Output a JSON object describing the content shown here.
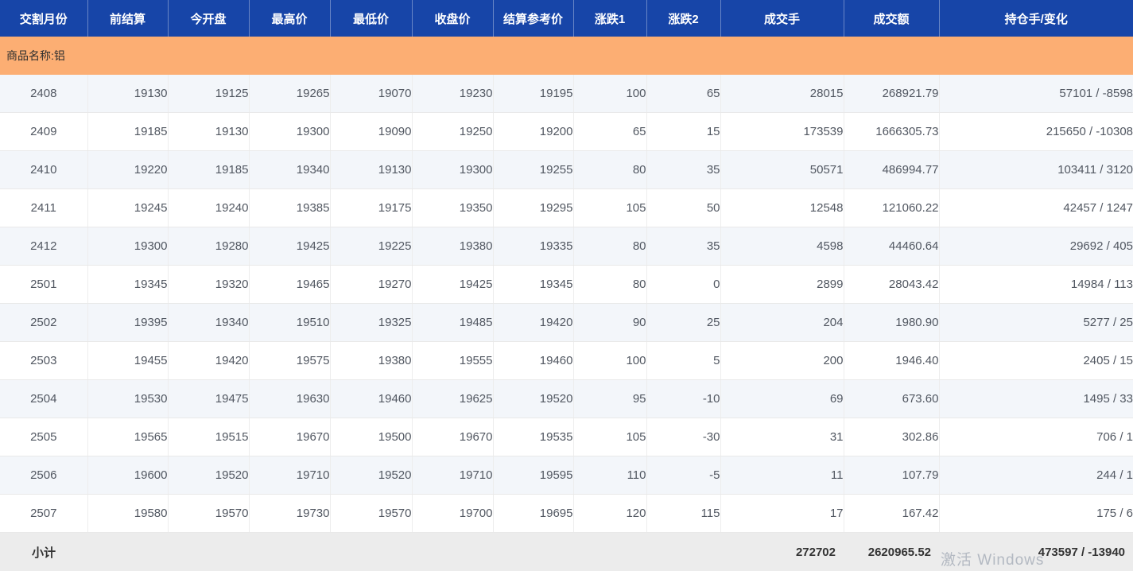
{
  "table": {
    "columns": [
      {
        "key": "month",
        "label": "交割月份"
      },
      {
        "key": "prev_settle",
        "label": "前结算"
      },
      {
        "key": "open",
        "label": "今开盘"
      },
      {
        "key": "high",
        "label": "最高价"
      },
      {
        "key": "low",
        "label": "最低价"
      },
      {
        "key": "close",
        "label": "收盘价"
      },
      {
        "key": "settle_ref",
        "label": "结算参考价"
      },
      {
        "key": "change1",
        "label": "涨跌1"
      },
      {
        "key": "change2",
        "label": "涨跌2"
      },
      {
        "key": "volume",
        "label": "成交手"
      },
      {
        "key": "turnover",
        "label": "成交额"
      },
      {
        "key": "open_interest",
        "label": "持仓手/变化"
      }
    ],
    "group_label": "商品名称:铝",
    "rows": [
      [
        "2408",
        "19130",
        "19125",
        "19265",
        "19070",
        "19230",
        "19195",
        "100",
        "65",
        "28015",
        "268921.79",
        "57101 / -8598"
      ],
      [
        "2409",
        "19185",
        "19130",
        "19300",
        "19090",
        "19250",
        "19200",
        "65",
        "15",
        "173539",
        "1666305.73",
        "215650 / -10308"
      ],
      [
        "2410",
        "19220",
        "19185",
        "19340",
        "19130",
        "19300",
        "19255",
        "80",
        "35",
        "50571",
        "486994.77",
        "103411 / 3120"
      ],
      [
        "2411",
        "19245",
        "19240",
        "19385",
        "19175",
        "19350",
        "19295",
        "105",
        "50",
        "12548",
        "121060.22",
        "42457 / 1247"
      ],
      [
        "2412",
        "19300",
        "19280",
        "19425",
        "19225",
        "19380",
        "19335",
        "80",
        "35",
        "4598",
        "44460.64",
        "29692 / 405"
      ],
      [
        "2501",
        "19345",
        "19320",
        "19465",
        "19270",
        "19425",
        "19345",
        "80",
        "0",
        "2899",
        "28043.42",
        "14984 / 113"
      ],
      [
        "2502",
        "19395",
        "19340",
        "19510",
        "19325",
        "19485",
        "19420",
        "90",
        "25",
        "204",
        "1980.90",
        "5277 / 25"
      ],
      [
        "2503",
        "19455",
        "19420",
        "19575",
        "19380",
        "19555",
        "19460",
        "100",
        "5",
        "200",
        "1946.40",
        "2405 / 15"
      ],
      [
        "2504",
        "19530",
        "19475",
        "19630",
        "19460",
        "19625",
        "19520",
        "95",
        "-10",
        "69",
        "673.60",
        "1495 / 33"
      ],
      [
        "2505",
        "19565",
        "19515",
        "19670",
        "19500",
        "19670",
        "19535",
        "105",
        "-30",
        "31",
        "302.86",
        "706 / 1"
      ],
      [
        "2506",
        "19600",
        "19520",
        "19710",
        "19520",
        "19710",
        "19595",
        "110",
        "-5",
        "11",
        "107.79",
        "244 / 1"
      ],
      [
        "2507",
        "19580",
        "19570",
        "19730",
        "19570",
        "19700",
        "19695",
        "120",
        "115",
        "17",
        "167.42",
        "175 / 6"
      ]
    ],
    "subtotal": {
      "label": "小计",
      "volume": "272702",
      "turnover": "2620965.52",
      "open_interest": "473597 / -13940"
    }
  },
  "watermark_text": "激活 Windows",
  "colors": {
    "header_bg": "#1745a8",
    "header_text": "#ffffff",
    "group_row_bg": "#fcae73",
    "row_alt_bg": "#f3f6fa",
    "row_bg": "#ffffff",
    "data_text": "#515761",
    "subtotal_bg": "#ececec",
    "subtotal_text": "#333333",
    "grid_line": "#e9e9e9"
  }
}
